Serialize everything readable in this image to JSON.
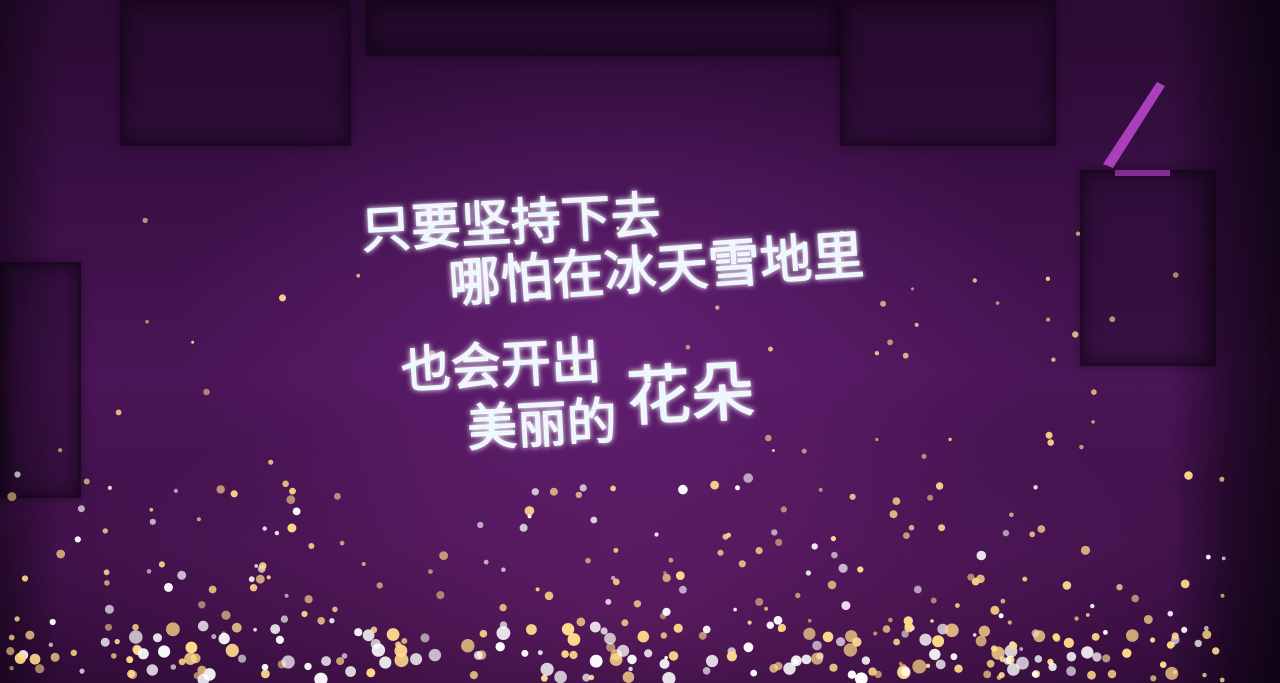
{
  "lyrics": {
    "line_1": "只要坚持下去",
    "line_2": "哪怕在冰天雪地里",
    "line_3": "也会开出",
    "line_4_prefix": "美丽的",
    "line_4_emphasis": "花朵"
  },
  "colors": {
    "text": "#eef6ff",
    "glow": "#bfe6ff",
    "background_purple": "#4a1556",
    "sparkle_warm": "#ffd98a",
    "sparkle_white": "#ffffff"
  }
}
